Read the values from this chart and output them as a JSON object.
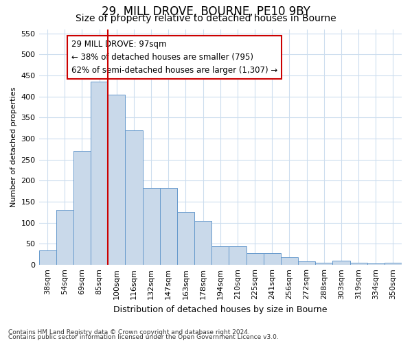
{
  "title1": "29, MILL DROVE, BOURNE, PE10 9BY",
  "title2": "Size of property relative to detached houses in Bourne",
  "xlabel": "Distribution of detached houses by size in Bourne",
  "ylabel": "Number of detached properties",
  "categories": [
    "38sqm",
    "54sqm",
    "69sqm",
    "85sqm",
    "100sqm",
    "116sqm",
    "132sqm",
    "147sqm",
    "163sqm",
    "178sqm",
    "194sqm",
    "210sqm",
    "225sqm",
    "241sqm",
    "256sqm",
    "272sqm",
    "288sqm",
    "303sqm",
    "319sqm",
    "334sqm",
    "350sqm"
  ],
  "values": [
    35,
    130,
    270,
    435,
    405,
    320,
    183,
    183,
    125,
    105,
    45,
    45,
    28,
    28,
    18,
    8,
    5,
    10,
    5,
    4,
    5
  ],
  "bar_color": "#c9d9ea",
  "bar_edge_color": "#6699cc",
  "vline_color": "#cc0000",
  "vline_pos": 3.5,
  "annotation_text": "29 MILL DROVE: 97sqm\n← 38% of detached houses are smaller (795)\n62% of semi-detached houses are larger (1,307) →",
  "annotation_box_facecolor": "#ffffff",
  "annotation_box_edgecolor": "#cc0000",
  "ylim": [
    0,
    560
  ],
  "yticks": [
    0,
    50,
    100,
    150,
    200,
    250,
    300,
    350,
    400,
    450,
    500,
    550
  ],
  "footer1": "Contains HM Land Registry data © Crown copyright and database right 2024.",
  "footer2": "Contains public sector information licensed under the Open Government Licence v3.0.",
  "bg_color": "#ffffff",
  "grid_color": "#ccddee",
  "title1_fontsize": 12,
  "title2_fontsize": 10,
  "xlabel_fontsize": 9,
  "ylabel_fontsize": 8,
  "tick_fontsize": 8,
  "footer_fontsize": 6.5
}
